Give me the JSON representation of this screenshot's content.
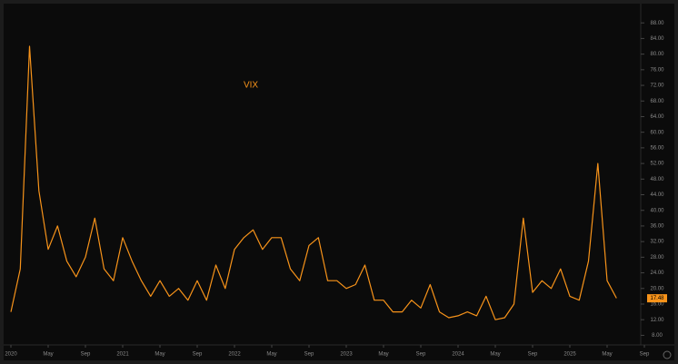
{
  "chart_data": {
    "type": "line",
    "title": "VIX",
    "color": "#f7931a",
    "x": [
      "2020-01",
      "2020-02",
      "2020-03",
      "2020-04",
      "2020-05",
      "2020-06",
      "2020-07",
      "2020-08",
      "2020-09",
      "2020-10",
      "2020-11",
      "2020-12",
      "2021-01",
      "2021-02",
      "2021-03",
      "2021-04",
      "2021-05",
      "2021-06",
      "2021-07",
      "2021-08",
      "2021-09",
      "2021-10",
      "2021-11",
      "2021-12",
      "2022-01",
      "2022-02",
      "2022-03",
      "2022-04",
      "2022-05",
      "2022-06",
      "2022-07",
      "2022-08",
      "2022-09",
      "2022-10",
      "2022-11",
      "2022-12",
      "2023-01",
      "2023-02",
      "2023-03",
      "2023-04",
      "2023-05",
      "2023-06",
      "2023-07",
      "2023-08",
      "2023-09",
      "2023-10",
      "2023-11",
      "2023-12",
      "2024-01",
      "2024-02",
      "2024-03",
      "2024-04",
      "2024-05",
      "2024-06",
      "2024-07",
      "2024-08",
      "2024-09",
      "2024-10",
      "2024-11",
      "2024-12",
      "2025-01",
      "2025-02",
      "2025-03",
      "2025-04",
      "2025-05",
      "2025-06"
    ],
    "values": [
      14,
      25,
      82,
      45,
      30,
      36,
      27,
      23,
      28,
      38,
      25,
      22,
      33,
      27,
      22,
      18,
      22,
      18,
      20,
      17,
      22,
      17,
      26,
      20,
      30,
      33,
      35,
      30,
      33,
      33,
      25,
      22,
      31,
      33,
      22,
      22,
      20,
      21,
      26,
      17,
      17,
      14,
      14,
      17,
      15,
      21,
      14,
      12.5,
      13,
      14,
      13,
      18,
      12,
      12.5,
      16,
      38,
      19,
      22,
      20,
      25,
      18,
      17,
      27,
      52,
      22,
      17.5
    ],
    "current_value": 17.48,
    "xlim": [
      "2020-01",
      "2025-09"
    ],
    "xticks": [
      {
        "value": "2020-01",
        "label": "2020"
      },
      {
        "value": "2020-05",
        "label": "May"
      },
      {
        "value": "2020-09",
        "label": "Sep"
      },
      {
        "value": "2021-01",
        "label": "2021"
      },
      {
        "value": "2021-05",
        "label": "May"
      },
      {
        "value": "2021-09",
        "label": "Sep"
      },
      {
        "value": "2022-01",
        "label": "2022"
      },
      {
        "value": "2022-05",
        "label": "May"
      },
      {
        "value": "2022-09",
        "label": "Sep"
      },
      {
        "value": "2023-01",
        "label": "2023"
      },
      {
        "value": "2023-05",
        "label": "May"
      },
      {
        "value": "2023-09",
        "label": "Sep"
      },
      {
        "value": "2024-01",
        "label": "2024"
      },
      {
        "value": "2024-05",
        "label": "May"
      },
      {
        "value": "2024-09",
        "label": "Sep"
      },
      {
        "value": "2025-01",
        "label": "2025"
      },
      {
        "value": "2025-05",
        "label": "May"
      },
      {
        "value": "2025-09",
        "label": "Sep"
      }
    ],
    "ylim": [
      6,
      92
    ],
    "yticks": [
      {
        "value": 8,
        "label": "8.00"
      },
      {
        "value": 12,
        "label": "12.00"
      },
      {
        "value": 16,
        "label": "16.00"
      },
      {
        "value": 20,
        "label": "20.00"
      },
      {
        "value": 24,
        "label": "24.00"
      },
      {
        "value": 28,
        "label": "28.00"
      },
      {
        "value": 32,
        "label": "32.00"
      },
      {
        "value": 36,
        "label": "36.00"
      },
      {
        "value": 40,
        "label": "40.00"
      },
      {
        "value": 44,
        "label": "44.00"
      },
      {
        "value": 48,
        "label": "48.00"
      },
      {
        "value": 52,
        "label": "52.00"
      },
      {
        "value": 56,
        "label": "56.00"
      },
      {
        "value": 60,
        "label": "60.00"
      },
      {
        "value": 64,
        "label": "64.00"
      },
      {
        "value": 68,
        "label": "68.00"
      },
      {
        "value": 72,
        "label": "72.00"
      },
      {
        "value": 76,
        "label": "76.00"
      },
      {
        "value": 80,
        "label": "80.00"
      },
      {
        "value": 84,
        "label": "84.00"
      },
      {
        "value": 88,
        "label": "88.00"
      }
    ],
    "grid": false
  }
}
